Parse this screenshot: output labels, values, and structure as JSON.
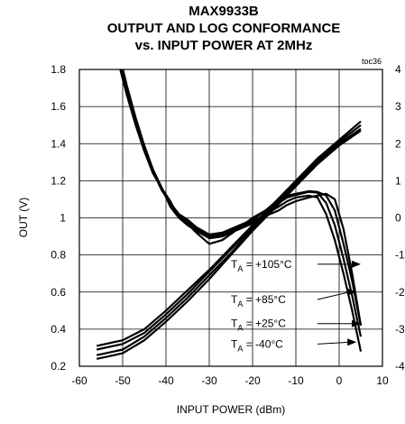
{
  "chart_data": {
    "type": "line",
    "title_lines": [
      "MAX9933B",
      "OUTPUT AND LOG CONFORMANCE",
      "vs. INPUT POWER AT 2MHz"
    ],
    "tag": "toc36",
    "xlabel": "INPUT POWER (dBm)",
    "ylabel": "OUT (V)",
    "xlim": [
      -60,
      10
    ],
    "ylim": [
      0.2,
      1.8
    ],
    "y2lim": [
      -4,
      4
    ],
    "xticks": [
      -60,
      -50,
      -40,
      -30,
      -20,
      -10,
      0,
      10
    ],
    "yticks": [
      "0.2",
      "0.4",
      "0.6",
      "0.8",
      "1",
      "1.2",
      "1.4",
      "1.6",
      "1.8"
    ],
    "y2ticks": [
      "-4",
      "-3",
      "-2",
      "-1",
      "0",
      "1",
      "2",
      "3",
      "4"
    ],
    "grid": true,
    "series": [
      {
        "group": "output",
        "x": [
          -56,
          -50,
          -45,
          -40,
          -35,
          -30,
          -25,
          -20,
          -15,
          -10,
          -5,
          0,
          5
        ],
        "y": [
          0.31,
          0.34,
          0.4,
          0.5,
          0.61,
          0.72,
          0.84,
          0.96,
          1.08,
          1.2,
          1.32,
          1.42,
          1.52
        ]
      },
      {
        "group": "output",
        "x": [
          -56,
          -50,
          -45,
          -40,
          -35,
          -30,
          -25,
          -20,
          -15,
          -10,
          -5,
          0,
          5
        ],
        "y": [
          0.29,
          0.32,
          0.38,
          0.48,
          0.59,
          0.71,
          0.83,
          0.95,
          1.07,
          1.19,
          1.31,
          1.41,
          1.5
        ]
      },
      {
        "group": "output",
        "x": [
          -56,
          -50,
          -45,
          -40,
          -35,
          -30,
          -25,
          -20,
          -15,
          -10,
          -5,
          0,
          5
        ],
        "y": [
          0.26,
          0.29,
          0.36,
          0.46,
          0.57,
          0.69,
          0.81,
          0.94,
          1.06,
          1.18,
          1.3,
          1.4,
          1.48
        ]
      },
      {
        "group": "output",
        "x": [
          -56,
          -50,
          -45,
          -40,
          -35,
          -30,
          -25,
          -20,
          -15,
          -10,
          -5,
          0,
          5
        ],
        "y": [
          0.24,
          0.27,
          0.34,
          0.44,
          0.55,
          0.67,
          0.8,
          0.93,
          1.05,
          1.17,
          1.29,
          1.39,
          1.47
        ]
      },
      {
        "group": "conformance",
        "x": [
          -51,
          -49,
          -47,
          -45,
          -43,
          -41,
          -39,
          -37,
          -35,
          -33,
          -30,
          -27,
          -24,
          -20,
          -17,
          -14,
          -12,
          -10,
          -7,
          -5,
          -3,
          -1,
          1,
          3,
          5
        ],
        "y2": [
          4.2,
          3.3,
          2.5,
          1.8,
          1.2,
          0.8,
          0.45,
          0.0,
          -0.15,
          -0.4,
          -0.7,
          -0.6,
          -0.35,
          0.0,
          0.2,
          0.5,
          0.6,
          0.65,
          0.72,
          0.7,
          0.6,
          0.2,
          -0.7,
          -1.7,
          -2.9
        ]
      },
      {
        "group": "conformance",
        "x": [
          -51,
          -49,
          -47,
          -45,
          -43,
          -41,
          -39,
          -37,
          -35,
          -33,
          -30,
          -27,
          -24,
          -20,
          -17,
          -14,
          -12,
          -10,
          -7,
          -5,
          -3,
          -1,
          1,
          3,
          5
        ],
        "y2": [
          4.3,
          3.4,
          2.6,
          1.85,
          1.25,
          0.75,
          0.4,
          0.1,
          -0.05,
          -0.25,
          -0.45,
          -0.4,
          -0.25,
          -0.05,
          0.2,
          0.4,
          0.55,
          0.62,
          0.7,
          0.68,
          0.4,
          -0.2,
          -1.1,
          -2.1,
          -3.2
        ]
      },
      {
        "group": "conformance",
        "x": [
          -51,
          -49,
          -47,
          -45,
          -43,
          -41,
          -39,
          -37,
          -35,
          -33,
          -30,
          -27,
          -24,
          -20,
          -17,
          -14,
          -12,
          -10,
          -7,
          -5,
          -3,
          -1,
          1,
          3,
          5
        ],
        "y2": [
          4.4,
          3.5,
          2.65,
          1.9,
          1.3,
          0.8,
          0.35,
          0.05,
          -0.1,
          -0.3,
          -0.5,
          -0.45,
          -0.3,
          -0.1,
          0.1,
          0.3,
          0.45,
          0.55,
          0.6,
          0.55,
          0.1,
          -0.6,
          -1.5,
          -2.5,
          -3.6
        ]
      },
      {
        "group": "conformance",
        "x": [
          -51,
          -49,
          -47,
          -45,
          -43,
          -41,
          -39,
          -37,
          -35,
          -33,
          -30,
          -27,
          -24,
          -20,
          -17,
          -14,
          -12,
          -10,
          -7,
          -5,
          -3,
          -1,
          1,
          3,
          5
        ],
        "y2": [
          4.5,
          3.55,
          2.7,
          1.95,
          1.3,
          0.82,
          0.3,
          0.0,
          -0.2,
          -0.35,
          -0.55,
          -0.5,
          -0.35,
          -0.15,
          0.05,
          0.2,
          0.35,
          0.45,
          0.55,
          0.6,
          0.65,
          0.5,
          -0.3,
          -1.5,
          -2.9
        ]
      }
    ],
    "annotations": [
      {
        "text": "T",
        "sub": "A",
        "rest": " = +105°C",
        "label_x": -25,
        "label_y": 0.75,
        "arrow_to_x": 5,
        "arrow_to_y": 0.75
      },
      {
        "text": "T",
        "sub": "A",
        "rest": " = +85°C",
        "label_x": -25,
        "label_y": 0.56,
        "arrow_to_x": 4,
        "arrow_to_y": 0.6
      },
      {
        "text": "T",
        "sub": "A",
        "rest": " = +25°C",
        "label_x": -25,
        "label_y": 0.43,
        "arrow_to_x": 5,
        "arrow_to_y": 0.43
      },
      {
        "text": "T",
        "sub": "A",
        "rest": " = -40°C",
        "label_x": -25,
        "label_y": 0.32,
        "arrow_to_x": 4,
        "arrow_to_y": 0.33
      }
    ]
  }
}
